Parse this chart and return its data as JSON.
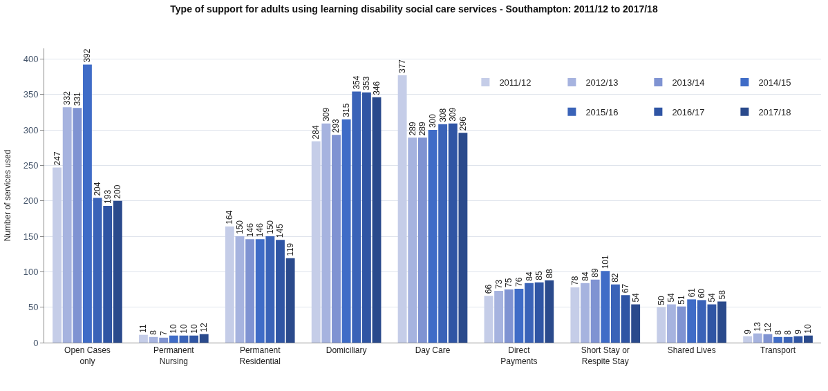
{
  "chart_data": {
    "type": "bar",
    "title": "Type of support for adults using learning disability social care services - Southampton: 2011/12 to 2017/18",
    "ylabel": "Number of services used",
    "categories": [
      "Open Cases only",
      "Permanent Nursing",
      "Permanent Residential",
      "Domiciliary",
      "Day Care",
      "Direct Payments",
      "Short Stay or Respite Stay",
      "Shared Lives",
      "Transport"
    ],
    "series": [
      {
        "name": "2011/12",
        "color": "#c5cde8",
        "values": [
          247,
          11,
          164,
          284,
          377,
          66,
          78,
          50,
          9
        ]
      },
      {
        "name": "2012/13",
        "color": "#a6b3df",
        "values": [
          332,
          8,
          150,
          309,
          289,
          73,
          84,
          54,
          13
        ]
      },
      {
        "name": "2013/14",
        "color": "#7f93d2",
        "values": [
          331,
          7,
          146,
          293,
          289,
          75,
          89,
          51,
          12
        ]
      },
      {
        "name": "2014/15",
        "color": "#3f6cc7",
        "values": [
          392,
          10,
          146,
          315,
          300,
          76,
          101,
          61,
          8
        ]
      },
      {
        "name": "2015/16",
        "color": "#3a63b8",
        "values": [
          204,
          10,
          150,
          354,
          308,
          84,
          82,
          60,
          8
        ]
      },
      {
        "name": "2016/17",
        "color": "#2f55a4",
        "values": [
          193,
          10,
          145,
          353,
          309,
          85,
          67,
          54,
          9
        ]
      },
      {
        "name": "2017/18",
        "color": "#2a4a8c",
        "values": [
          200,
          12,
          119,
          346,
          296,
          88,
          54,
          58,
          10
        ]
      }
    ],
    "ylim": [
      0,
      415
    ],
    "yticks": [
      0,
      50,
      100,
      150,
      200,
      250,
      300,
      350,
      400
    ],
    "grid": "y",
    "legend": "top right",
    "data_labels": true
  }
}
